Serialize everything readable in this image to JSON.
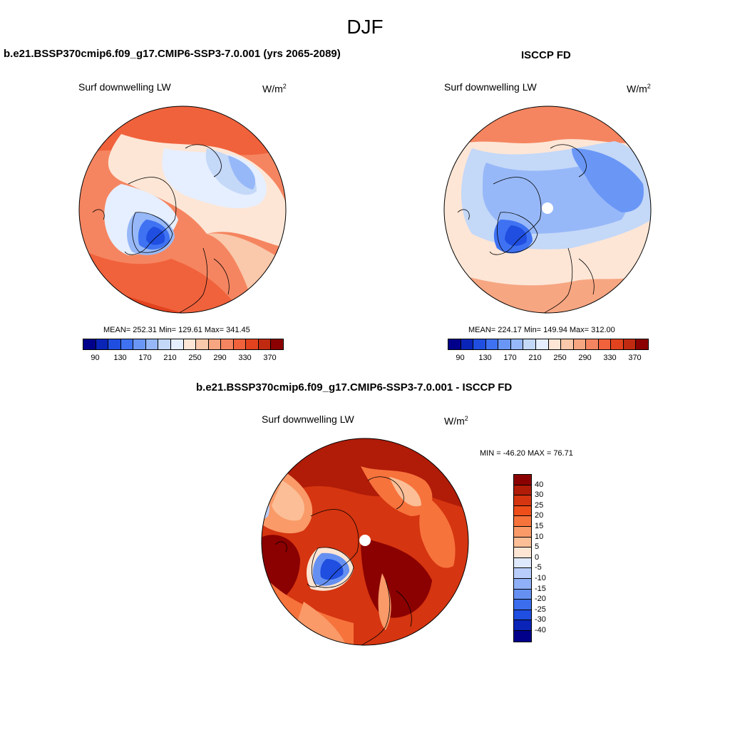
{
  "figure": {
    "title": "DJF"
  },
  "panels": [
    {
      "header": "b.e21.BSSP370cmip6.f09_g17.CMIP6-SSP3-7.0.001 (yrs 2065-2089)",
      "variable": "Surf downwelling LW",
      "units_base": "W/m",
      "units_exp": "2",
      "stats": "MEAN= 252.31  Min= 129.61  Max= 341.45"
    },
    {
      "header": "ISCCP FD",
      "variable": "Surf downwelling LW",
      "units_base": "W/m",
      "units_exp": "2",
      "stats": "MEAN= 224.17  Min= 149.94  Max= 312.00"
    },
    {
      "header": "b.e21.BSSP370cmip6.f09_g17.CMIP6-SSP3-7.0.001 - ISCCP FD",
      "variable": "Surf downwelling LW",
      "units_base": "W/m",
      "units_exp": "2",
      "stats": "MIN = -46.20 MAX =  76.71"
    }
  ],
  "abs_colorbar": {
    "colors": [
      "#00008b",
      "#0a24b8",
      "#1f4ee0",
      "#3f72f2",
      "#6a97f6",
      "#97b8f8",
      "#c4d8f8",
      "#e6efff",
      "#fde6d6",
      "#fac8aa",
      "#f7a682",
      "#f58560",
      "#f0623c",
      "#e2431e",
      "#c02a10",
      "#8b0000"
    ],
    "tick_labels": [
      "90",
      "130",
      "170",
      "210",
      "250",
      "290",
      "330",
      "370"
    ]
  },
  "diff_colorbar": {
    "colors": [
      "#8b0000",
      "#b01c08",
      "#d53510",
      "#ee4e1a",
      "#f7733c",
      "#f99a68",
      "#fbbe96",
      "#fde5d4",
      "#dfe9fd",
      "#b9cdfb",
      "#8fb0f7",
      "#6590f2",
      "#3b6ded",
      "#1f4ee0",
      "#0a24b8",
      "#00008b"
    ],
    "tick_labels": [
      "40",
      "30",
      "25",
      "20",
      "15",
      "10",
      "5",
      "0",
      "-5",
      "-10",
      "-15",
      "-20",
      "-25",
      "-30",
      "-40"
    ]
  },
  "icons": {
    "map_1": "polar-map-model-icon",
    "map_2": "polar-map-obs-icon",
    "map_3": "polar-map-diff-icon"
  }
}
